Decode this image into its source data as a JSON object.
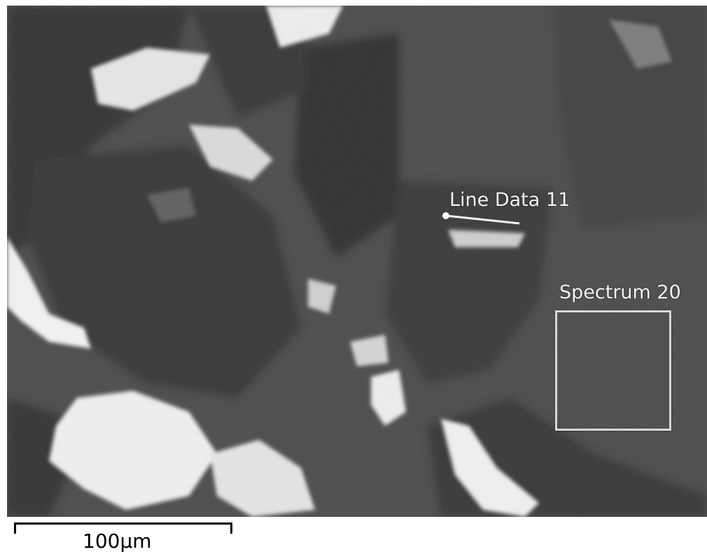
{
  "image": {
    "type": "SEM backscatter micrograph",
    "palette": {
      "matrix": "#4a4a4a",
      "dark_phase": "#2f2f2f",
      "bright_phase": "#f4f4f4",
      "overlay": "#f2f2f2"
    }
  },
  "annotations": {
    "line_data_label": "Line Data 11",
    "spectrum_label": "Spectrum 20"
  },
  "scalebar": {
    "label": "100µm"
  }
}
